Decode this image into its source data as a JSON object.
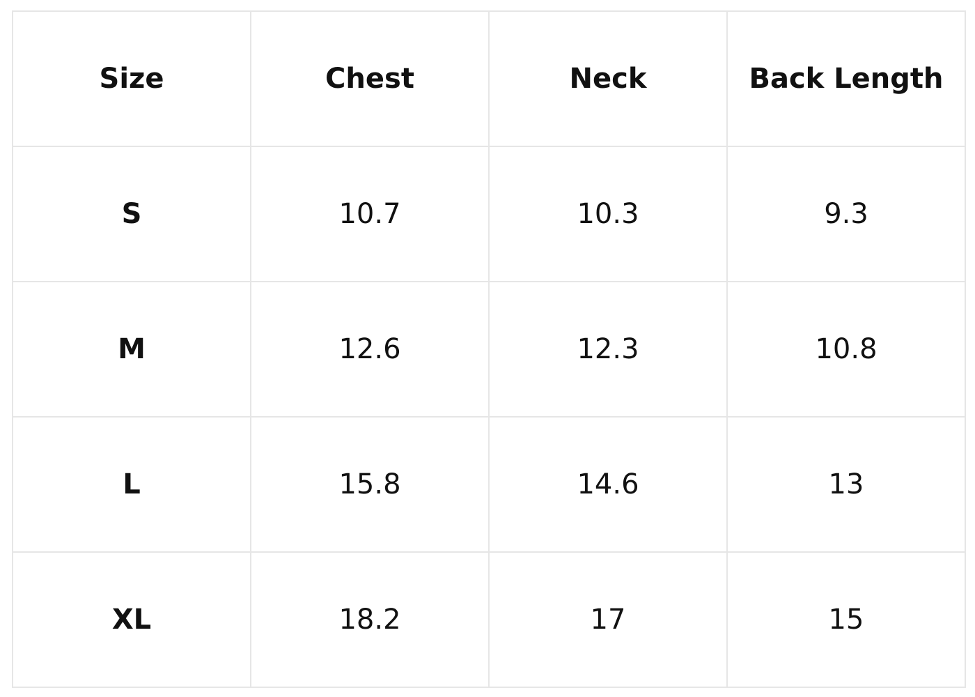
{
  "table": {
    "header": [
      "Size",
      "Chest",
      "Neck",
      "Back Length"
    ],
    "rows": [
      [
        "S",
        10.7,
        10.3,
        9.3
      ],
      [
        "M",
        12.6,
        12.3,
        10.8
      ],
      [
        "L",
        15.8,
        14.6,
        13
      ],
      [
        "XL",
        18.2,
        17,
        15
      ]
    ]
  }
}
